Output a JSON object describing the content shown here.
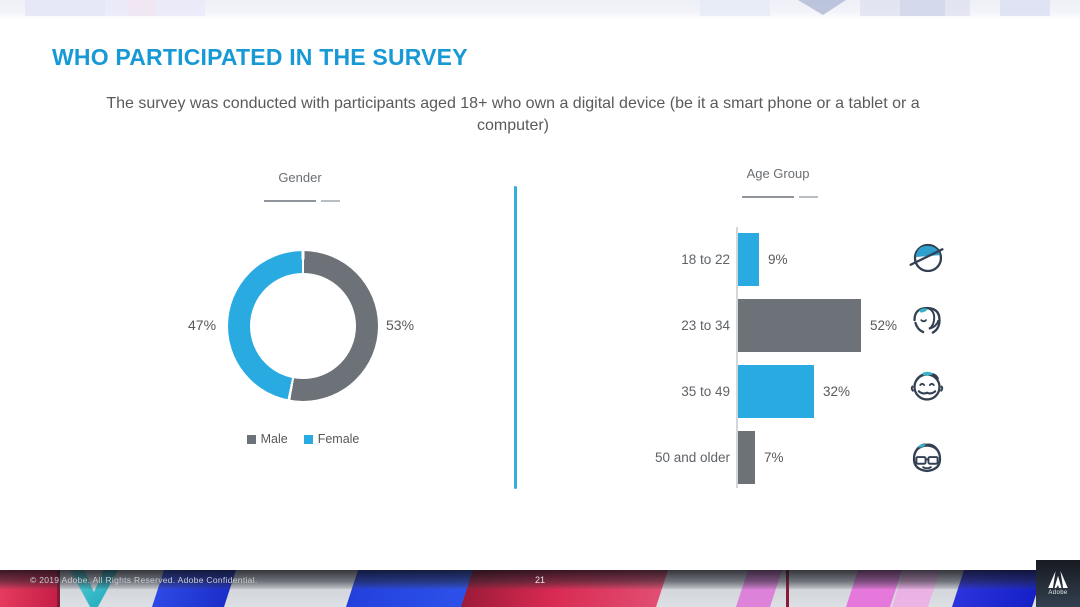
{
  "slide": {
    "title": "WHO PARTICIPATED IN THE SURVEY",
    "subtitle": "The survey was conducted with participants aged 18+ who own a digital device (be it a smart phone or a tablet or a computer)",
    "page_number": "21",
    "footer_text": "© 2019 Adobe.  All Rights Reserved.  Adobe Confidential.",
    "logo_label": "Adobe"
  },
  "colors": {
    "title_blue": "#1799D6",
    "accent_blue": "#29ABE2",
    "neutral_gray": "#6D7278",
    "divider_cyan": "#35AFD9",
    "text_gray": "#595959"
  },
  "chart_data": [
    {
      "type": "pie",
      "variant": "donut",
      "title": "Gender",
      "labels": [
        "Male",
        "Female"
      ],
      "values": [
        53,
        47
      ],
      "value_labels": [
        "53%",
        "47%"
      ],
      "colors": {
        "Male": "#6D7278",
        "Female": "#29ABE2"
      },
      "legend_position": "bottom",
      "start_angle_deg": 0,
      "direction": "clockwise"
    },
    {
      "type": "bar",
      "orientation": "horizontal",
      "title": "Age Group",
      "categories": [
        "18 to 22",
        "23 to 34",
        "35 to 49",
        "50 and older"
      ],
      "values": [
        9,
        52,
        32,
        7
      ],
      "value_labels": [
        "9%",
        "52%",
        "32%",
        "7%"
      ],
      "bar_colors": [
        "#29ABE2",
        "#6D7278",
        "#29ABE2",
        "#6D7278"
      ],
      "xlim": [
        0,
        60
      ],
      "gridlines": false,
      "row_icons": [
        "young-adult-face-icon",
        "adult-face-icon",
        "middle-aged-face-icon",
        "senior-face-icon"
      ]
    }
  ]
}
